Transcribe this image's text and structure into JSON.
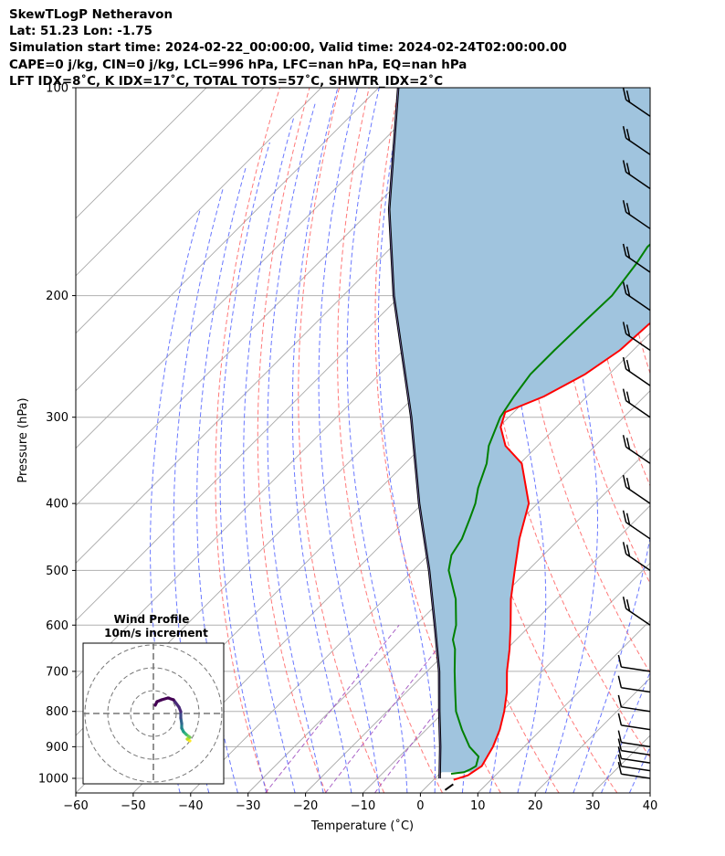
{
  "header": {
    "line1": "SkewTLogP Netheravon",
    "line2": "Lat: 51.23   Lon: -1.75",
    "line3": "Simulation start time: 2024-02-22_00:00:00, Valid time: 2024-02-24T02:00:00.00",
    "line4": "CAPE=0 j/kg, CIN=0 j/kg, LCL=996 hPa, LFC=nan hPa, EQ=nan hPa",
    "line5": "LFT IDX=8˚C, K IDX=17˚C, TOTAL TOTS=57˚C, SHWTR_IDX=2˚C"
  },
  "chart_data": {
    "type": "line",
    "xlabel": "Temperature (˚C)",
    "ylabel": "Pressure (hPa)",
    "xlim": [
      -60,
      40
    ],
    "ylim": [
      1050,
      100
    ],
    "y_scale": "log",
    "x_ticks": [
      "−60",
      "−50",
      "−40",
      "−30",
      "−20",
      "−10",
      "0",
      "10",
      "20",
      "30",
      "40"
    ],
    "x_tick_values": [
      -60,
      -50,
      -40,
      -30,
      -20,
      -10,
      0,
      10,
      20,
      30,
      40
    ],
    "y_ticks": [
      "100",
      "200",
      "300",
      "400",
      "500",
      "600",
      "700",
      "800",
      "900",
      "1000"
    ],
    "y_tick_values": [
      100,
      200,
      300,
      400,
      500,
      600,
      700,
      800,
      900,
      1000
    ],
    "grid": true,
    "colors": {
      "temperature": "#ff0000",
      "dewpoint": "#008000",
      "parcel": "#000000",
      "fill": "#a0c4de",
      "dry_adiabats": "#ff6060",
      "moist_adiabats": "#5060ff",
      "mixing_ratio": "#a050c0",
      "isotherms": "#aaaaaa"
    },
    "series": [
      {
        "key": "temperature",
        "pressure": [
          1005,
          990,
          960,
          930,
          900,
          850,
          800,
          750,
          700,
          650,
          600,
          550,
          500,
          450,
          400,
          350,
          330,
          310,
          295,
          280,
          260,
          240,
          220,
          200,
          180,
          160,
          140,
          120,
          105,
          100
        ],
        "values": [
          3.5,
          5.2,
          6.0,
          5.3,
          4.6,
          2.8,
          0.4,
          -2.5,
          -6.1,
          -9.5,
          -13.5,
          -18.0,
          -22.3,
          -27.0,
          -31.5,
          -39.7,
          -45.6,
          -49.7,
          -51.5,
          -47.5,
          -44.2,
          -42.3,
          -41.8,
          -39.3,
          -34.8,
          -29.6,
          -25.2,
          -22.0,
          -20.4,
          -20.0
        ]
      },
      {
        "key": "dewpoint",
        "pressure": [
          985,
          980,
          970,
          960,
          950,
          930,
          900,
          850,
          800,
          750,
          700,
          650,
          630,
          600,
          550,
          500,
          475,
          450,
          420,
          400,
          380,
          350,
          330,
          300,
          280,
          260,
          240,
          220,
          200,
          180,
          170,
          140,
          120,
          100
        ],
        "values": [
          2.0,
          4.0,
          4.6,
          5.0,
          4.6,
          3.8,
          0.5,
          -3.8,
          -8.0,
          -11.5,
          -15.2,
          -19.0,
          -21.0,
          -23.0,
          -27.6,
          -33.8,
          -36.0,
          -37.0,
          -39.2,
          -40.8,
          -43.0,
          -45.8,
          -48.5,
          -51.5,
          -52.7,
          -53.7,
          -53.7,
          -53.5,
          -53.2,
          -54.5,
          -55.5,
          -54.4,
          -53.0,
          -51.3
        ]
      },
      {
        "key": "parcel",
        "pressure": [
          1000,
          900,
          800,
          700,
          600,
          500,
          400,
          300,
          200,
          150,
          100
        ],
        "values": [
          0.8,
          -4.6,
          -10.9,
          -17.9,
          -26.7,
          -37.2,
          -50.6,
          -67.0,
          -91.2,
          -107.0,
          -126.6
        ]
      }
    ],
    "wind_barbs": [
      {
        "pressure": 1000,
        "label": "barb"
      },
      {
        "pressure": 975,
        "label": "barb"
      },
      {
        "pressure": 950,
        "label": "barb"
      },
      {
        "pressure": 925,
        "label": "barb"
      },
      {
        "pressure": 900,
        "label": "barb"
      },
      {
        "pressure": 850,
        "label": "barb"
      },
      {
        "pressure": 800,
        "label": "barb"
      },
      {
        "pressure": 750,
        "label": "barb"
      },
      {
        "pressure": 700,
        "label": "barb"
      },
      {
        "pressure": 600,
        "label": "barb"
      },
      {
        "pressure": 500,
        "label": "barb"
      },
      {
        "pressure": 450,
        "label": "barb"
      },
      {
        "pressure": 400,
        "label": "barb"
      },
      {
        "pressure": 350,
        "label": "barb"
      },
      {
        "pressure": 300,
        "label": "barb"
      },
      {
        "pressure": 270,
        "label": "barb"
      },
      {
        "pressure": 240,
        "label": "barb"
      },
      {
        "pressure": 210,
        "label": "barb"
      },
      {
        "pressure": 185,
        "label": "barb"
      },
      {
        "pressure": 160,
        "label": "barb"
      },
      {
        "pressure": 140,
        "label": "barb"
      },
      {
        "pressure": 125,
        "label": "barb"
      },
      {
        "pressure": 110,
        "label": "barb"
      }
    ],
    "inset": {
      "title_line1": "Wind Profile",
      "title_line2": "10m/s increment"
    }
  }
}
